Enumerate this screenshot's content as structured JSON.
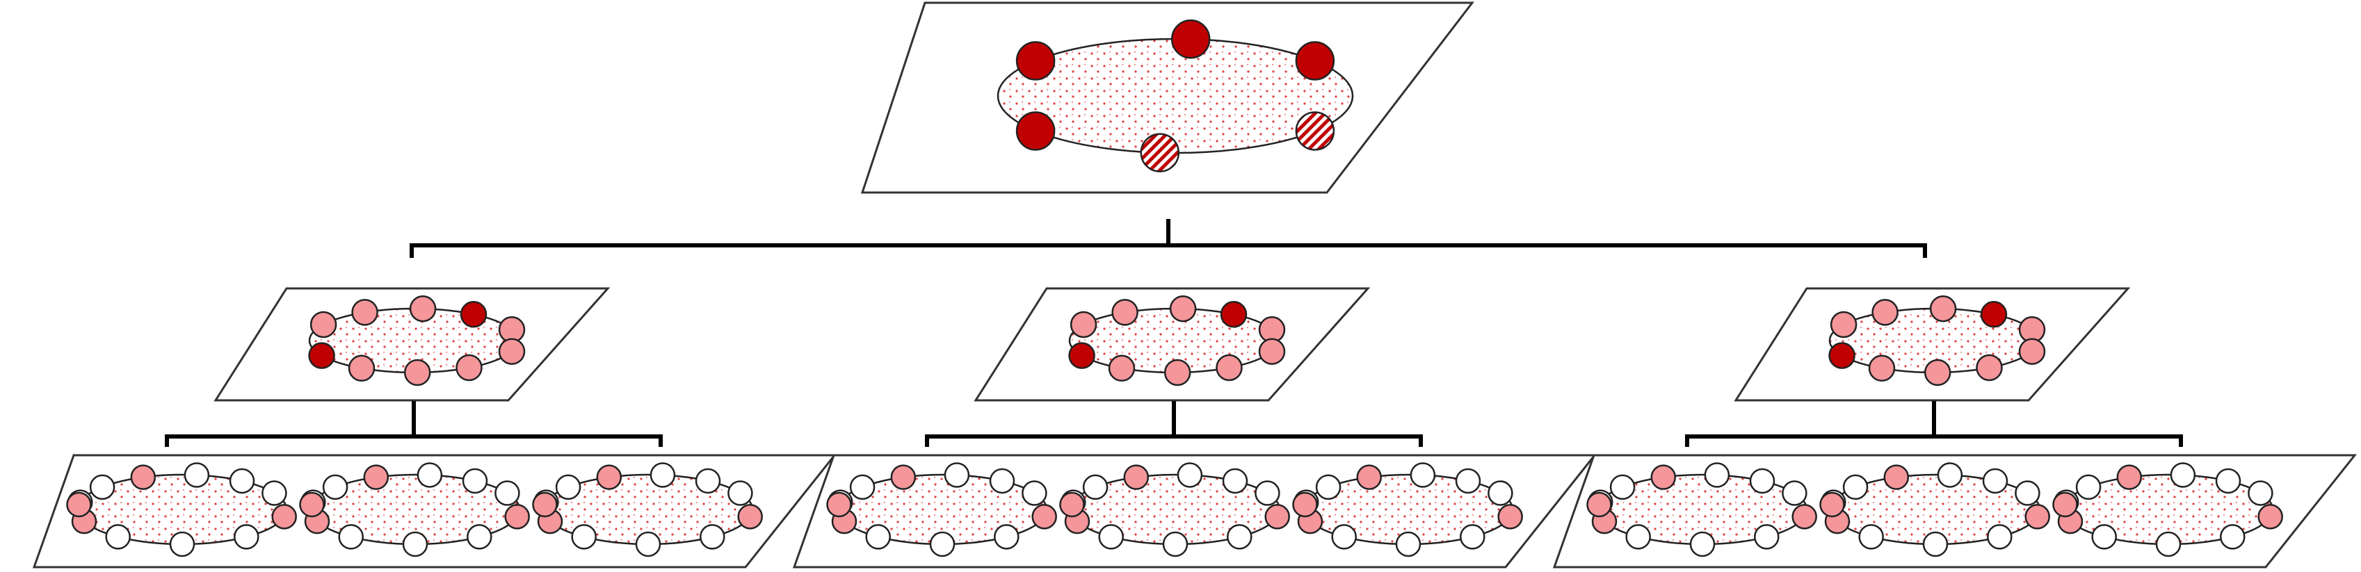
{
  "colors": {
    "core": "#c00000",
    "member": "#f4969a",
    "empty": "#ffffff",
    "dots": "#e04040",
    "line": "#000000"
  },
  "hierarchy": {
    "top": {
      "nodes": [
        "core",
        "core",
        "core",
        "core",
        "hatched",
        "hatched"
      ]
    },
    "middle_groups": 3,
    "middle_nodes": [
      "member",
      "member",
      "member",
      "core",
      "member",
      "member",
      "member",
      "member",
      "member",
      "core"
    ],
    "bottom_rings_per_group": 3,
    "bottom_nodes": [
      "empty",
      "empty",
      "member",
      "empty",
      "empty",
      "empty",
      "member",
      "empty",
      "empty",
      "empty",
      "member",
      "member"
    ]
  }
}
